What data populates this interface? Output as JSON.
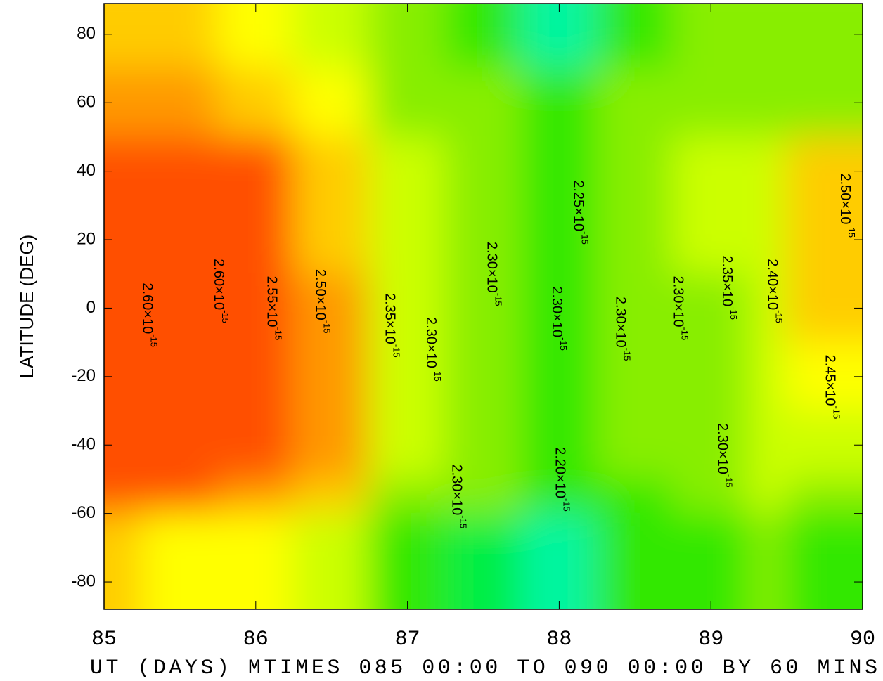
{
  "chart_data": {
    "type": "contour",
    "ylabel": "LATITUDE (DEG)",
    "xlabel": "UT (DAYS) MTIMES 085 00:00 TO 090 00:00 BY   60 MINS",
    "xlim": [
      85,
      90
    ],
    "xticks": [
      85,
      86,
      87,
      88,
      89,
      90
    ],
    "ylim": [
      -88,
      89
    ],
    "yticks": [
      80,
      60,
      40,
      20,
      0,
      -20,
      -40,
      -60,
      -80
    ],
    "x": [
      85,
      85.5,
      86,
      86.5,
      87,
      87.5,
      88,
      88.5,
      89,
      89.5,
      90
    ],
    "y": [
      80,
      60,
      40,
      20,
      0,
      -20,
      -40,
      -60,
      -80
    ],
    "z": [
      [
        2.45e-15,
        2.45e-15,
        2.4e-15,
        2.35e-15,
        2.3e-15,
        2.25e-15,
        2.15e-15,
        2.25e-15,
        2.3e-15,
        2.3e-15,
        2.3e-15
      ],
      [
        2.5e-15,
        2.5e-15,
        2.45e-15,
        2.4e-15,
        2.3e-15,
        2.3e-15,
        2.25e-15,
        2.3e-15,
        2.3e-15,
        2.3e-15,
        2.3e-15
      ],
      [
        2.55e-15,
        2.55e-15,
        2.55e-15,
        2.45e-15,
        2.35e-15,
        2.3e-15,
        2.25e-15,
        2.3e-15,
        2.35e-15,
        2.35e-15,
        2.45e-15
      ],
      [
        2.58e-15,
        2.57e-15,
        2.55e-15,
        2.45e-15,
        2.35e-15,
        2.3e-15,
        2.28e-15,
        2.3e-15,
        2.35e-15,
        2.38e-15,
        2.48e-15
      ],
      [
        2.58e-15,
        2.57e-15,
        2.55e-15,
        2.5e-15,
        2.35e-15,
        2.3e-15,
        2.28e-15,
        2.3e-15,
        2.33e-15,
        2.38e-15,
        2.45e-15
      ],
      [
        2.58e-15,
        2.57e-15,
        2.55e-15,
        2.5e-15,
        2.35e-15,
        2.3e-15,
        2.25e-15,
        2.3e-15,
        2.3e-15,
        2.38e-15,
        2.42e-15
      ],
      [
        2.58e-15,
        2.57e-15,
        2.55e-15,
        2.5e-15,
        2.38e-15,
        2.32e-15,
        2.28e-15,
        2.3e-15,
        2.3e-15,
        2.38e-15,
        2.35e-15
      ],
      [
        2.55e-15,
        2.55e-15,
        2.52e-15,
        2.45e-15,
        2.3e-15,
        2.3e-15,
        2.25e-15,
        2.28e-15,
        2.3e-15,
        2.35e-15,
        2.3e-15
      ],
      [
        2.45e-15,
        2.4e-15,
        2.4e-15,
        2.35e-15,
        2.25e-15,
        2.22e-15,
        2.18e-15,
        2.25e-15,
        2.28e-15,
        2.3e-15,
        2.25e-15
      ]
    ],
    "color_levels": [
      2.15e-15,
      2.2e-15,
      2.25e-15,
      2.3e-15,
      2.35e-15,
      2.4e-15,
      2.45e-15,
      2.5e-15,
      2.55e-15,
      2.6e-15
    ],
    "colors": [
      "#00e5ff",
      "#00f5a0",
      "#00ee44",
      "#33e800",
      "#88ee00",
      "#ccff00",
      "#ffff00",
      "#ffcc00",
      "#ff9900",
      "#ff5000",
      "#ff1a00"
    ],
    "contour_labels": [
      {
        "value": 2.6e-15,
        "label": "2.60×10",
        "exponent": "-15",
        "x": 85.28,
        "y": -2
      },
      {
        "value": 2.6e-15,
        "label": "2.60×10",
        "exponent": "-15",
        "x": 85.75,
        "y": 5
      },
      {
        "value": 2.55e-15,
        "label": "2.55×10",
        "exponent": "-15",
        "x": 86.1,
        "y": 0
      },
      {
        "value": 2.5e-15,
        "label": "2.50×10",
        "exponent": "-15",
        "x": 86.42,
        "y": 2
      },
      {
        "value": 2.35e-15,
        "label": "2.35×10",
        "exponent": "-15",
        "x": 86.88,
        "y": -5
      },
      {
        "value": 2.3e-15,
        "label": "2.30×10",
        "exponent": "-15",
        "x": 87.15,
        "y": -12
      },
      {
        "value": 2.3e-15,
        "label": "2.30×10",
        "exponent": "-15",
        "x": 87.55,
        "y": 10
      },
      {
        "value": 2.25e-15,
        "label": "2.25×10",
        "exponent": "-15",
        "x": 88.12,
        "y": 28
      },
      {
        "value": 2.3e-15,
        "label": "2.30×10",
        "exponent": "-15",
        "x": 87.98,
        "y": -3
      },
      {
        "value": 2.3e-15,
        "label": "2.30×10",
        "exponent": "-15",
        "x": 87.32,
        "y": -55
      },
      {
        "value": 2.2e-15,
        "label": "2.20×10",
        "exponent": "-15",
        "x": 88.0,
        "y": -50
      },
      {
        "value": 2.3e-15,
        "label": "2.30×10",
        "exponent": "-15",
        "x": 88.4,
        "y": -6
      },
      {
        "value": 2.3e-15,
        "label": "2.30×10",
        "exponent": "-15",
        "x": 88.78,
        "y": 0
      },
      {
        "value": 2.35e-15,
        "label": "2.35×10",
        "exponent": "-15",
        "x": 89.1,
        "y": 6
      },
      {
        "value": 2.3e-15,
        "label": "2.30×10",
        "exponent": "-15",
        "x": 89.07,
        "y": -43
      },
      {
        "value": 2.4e-15,
        "label": "2.40×10",
        "exponent": "-15",
        "x": 89.4,
        "y": 5
      },
      {
        "value": 2.45e-15,
        "label": "2.45×10",
        "exponent": "-15",
        "x": 89.78,
        "y": -23
      },
      {
        "value": 2.5e-15,
        "label": "2.50×10",
        "exponent": "-15",
        "x": 89.88,
        "y": 30
      }
    ]
  }
}
